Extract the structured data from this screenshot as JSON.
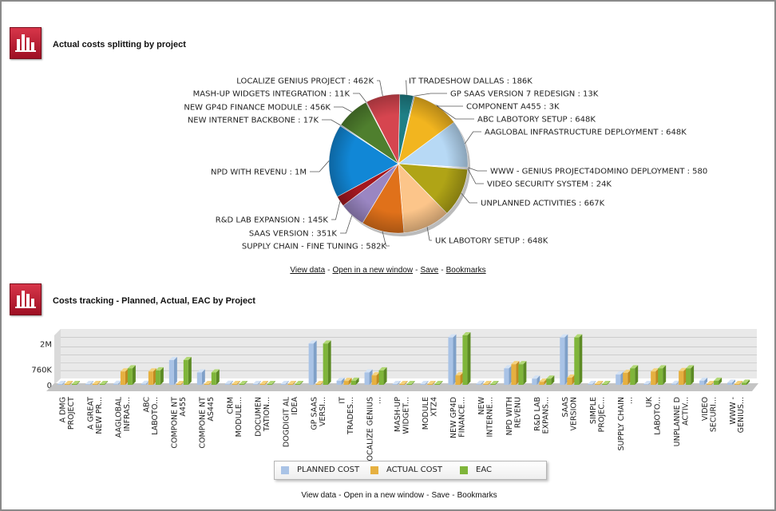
{
  "panels": {
    "pie_title": "Actual costs splitting by project",
    "bar_title": "Costs tracking - Planned, Actual, EAC by Project"
  },
  "links": {
    "view_data": "View data",
    "open_window": "Open in a new window",
    "save": "Save",
    "bookmarks": "Bookmarks",
    "separator": "-"
  },
  "colors": {
    "icon": "#c0203a",
    "planned": "#a9c3e6",
    "actual": "#e6b040",
    "eac": "#7fb53a"
  },
  "icons": {
    "panel": "bar-chart-icon"
  },
  "chart_data": [
    {
      "type": "pie",
      "slices": [
        {
          "label": "IT TRADESHOW DALLAS : 186K",
          "value": 186,
          "color": "#1f7f86"
        },
        {
          "label": "GP SAAS VERSION 7 REDESIGN : 13K",
          "value": 13,
          "color": "#2d86cc"
        },
        {
          "label": "COMPONENT A455 : 3K",
          "value": 3,
          "color": "#7fb53a"
        },
        {
          "label": "ABC LABOTORY SETUP : 648K",
          "value": 648,
          "color": "#f2b51f"
        },
        {
          "label": "AAGLOBAL INFRASTRUCTURE DEPLOYMENT : 648K",
          "value": 648,
          "color": "#b7d9f5"
        },
        {
          "label": "WWW - GENIUS PROJECT4DOMINO DEPLOYMENT : 580",
          "value": 0.58,
          "color": "#d9d9d9"
        },
        {
          "label": "VIDEO SECURITY SYSTEM : 24K",
          "value": 24,
          "color": "#e8e8e8"
        },
        {
          "label": "UNPLANNED ACTIVITIES : 667K",
          "value": 667,
          "color": "#b0a416"
        },
        {
          "label": "UK LABOTORY SETUP : 648K",
          "value": 648,
          "color": "#fcc58a"
        },
        {
          "label": "SUPPLY CHAIN - FINE TUNING : 582K",
          "value": 582,
          "color": "#e0711a"
        },
        {
          "label": "SAAS VERSION : 351K",
          "value": 351,
          "color": "#9a86c2"
        },
        {
          "label": "R&D LAB EXPANSION : 145K",
          "value": 145,
          "color": "#a3171f"
        },
        {
          "label": "NPD WITH REVENU : 1M",
          "value": 1000,
          "color": "#1187d6"
        },
        {
          "label": "NEW INTERNET BACKBONE : 17K",
          "value": 17,
          "color": "#9ab7d3"
        },
        {
          "label": "NEW GP4D FINANCE MODULE : 456K",
          "value": 456,
          "color": "#4f7f2e"
        },
        {
          "label": "MASH-UP WIDGETS INTEGRATION : 11K",
          "value": 11,
          "color": "#e8c0c0"
        },
        {
          "label": "LOCALIZE GENIUS PROJECT : 462K",
          "value": 462,
          "color": "#d6454f"
        }
      ]
    },
    {
      "type": "bar",
      "categories": [
        "A DMG PROJECT",
        "A GREAT NEW PR...",
        "AAGLOBAL INFRAS...",
        "ABC LABOTO...",
        "COMPONE NT A455",
        "COMPONE NT AS445",
        "CRM MODULE...",
        "DOCUMEN TATION...",
        "DOGDIGIT AL IDEA",
        "GP SAAS VERSI...",
        "IT TRADES...",
        "LOCALIZE GENIUS ...",
        "MASH-UP WIDGET...",
        "MODULE XTZ4",
        "NEW GP4D FINANCE...",
        "NEW INTERNE...",
        "NPD WITH REVENU",
        "R&D LAB EXPANS...",
        "SAAS VERSION",
        "SIMPLE PROJEC...",
        "SUPPLY CHAIN ...",
        "UK LABOTO...",
        "UNPLANNE D ACTIV...",
        "VIDEO SECURI...",
        "WWW - GENIUS..."
      ],
      "series": [
        {
          "name": "PLANNED COST",
          "values": [
            0.03,
            0.03,
            0.05,
            0.05,
            1.2,
            0.6,
            0.05,
            0.03,
            0.03,
            2.0,
            0.2,
            0.6,
            0.04,
            0.04,
            2.3,
            0.05,
            0.8,
            0.3,
            2.3,
            0.04,
            0.5,
            0.03,
            0.05,
            0.2,
            0.1
          ]
        },
        {
          "name": "ACTUAL COST",
          "values": [
            0.0,
            0.0,
            0.65,
            0.65,
            0.0,
            0.0,
            0.0,
            0.0,
            0.0,
            0.0,
            0.19,
            0.46,
            0.01,
            0.0,
            0.46,
            0.02,
            1.0,
            0.15,
            0.35,
            0.0,
            0.58,
            0.65,
            0.67,
            0.02,
            0.0
          ]
        },
        {
          "name": "EAC",
          "values": [
            0.0,
            0.0,
            0.8,
            0.7,
            1.2,
            0.6,
            0.0,
            0.0,
            0.0,
            2.0,
            0.2,
            0.7,
            0.01,
            0.0,
            2.4,
            0.02,
            1.0,
            0.3,
            2.3,
            0.0,
            0.8,
            0.8,
            0.8,
            0.2,
            0.1
          ]
        }
      ],
      "yticks": [
        "0",
        "760K",
        "2M"
      ],
      "ytick_values": [
        0,
        0.76,
        2.0
      ],
      "ylim": [
        0,
        2.4
      ],
      "legend": {
        "position": "bottom"
      }
    }
  ]
}
